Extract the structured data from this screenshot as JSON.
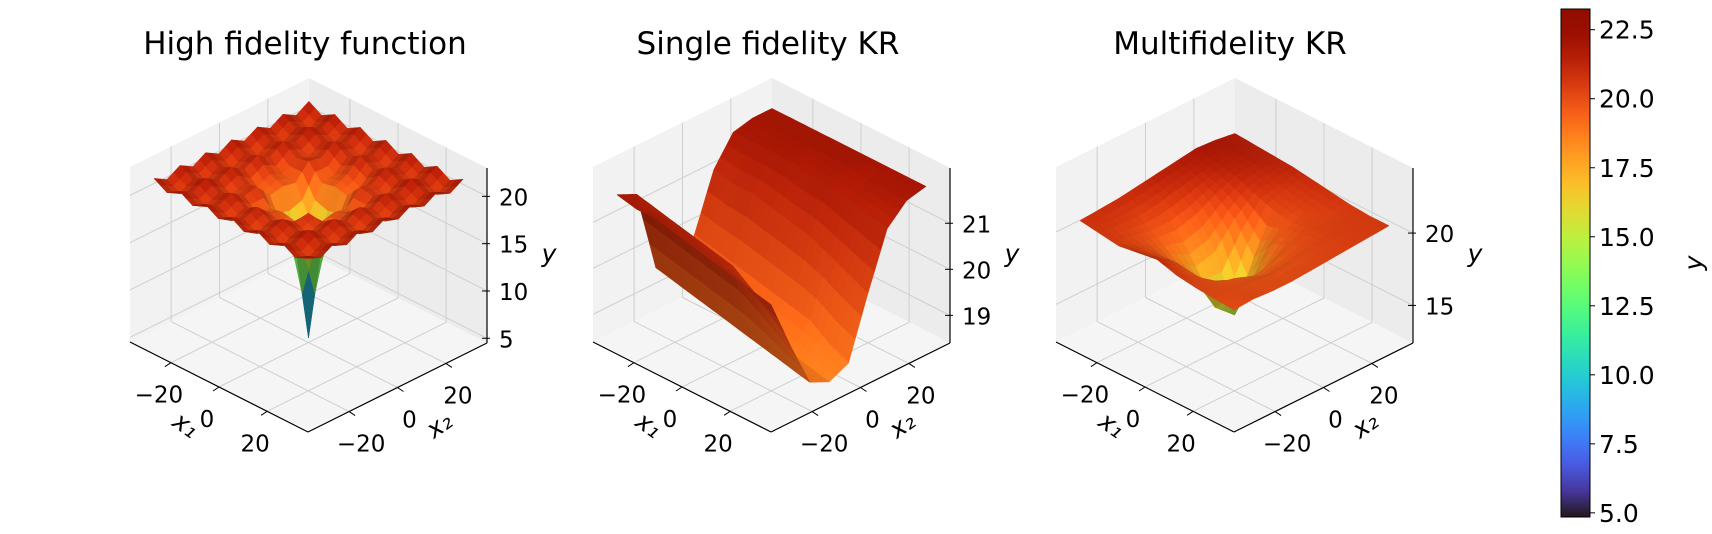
{
  "chart_data": {
    "type": "surface3d",
    "colormap": "turbo",
    "plots": [
      {
        "title": "High fidelity function",
        "xlabel": "x₁",
        "x2label": "x₂",
        "zlabel": "y",
        "x1_ticks": [
          -20,
          0,
          20
        ],
        "x1_tick_labels": [
          "−20",
          "0",
          "20"
        ],
        "x2_ticks": [
          -20,
          0,
          20
        ],
        "x2_tick_labels": [
          "−20",
          "0",
          "20"
        ],
        "z_ticks": [
          5,
          10,
          15,
          20
        ],
        "z_tick_labels": [
          "5",
          "10",
          "15",
          "20"
        ],
        "xlim": [
          -37,
          37
        ],
        "zlim": [
          4.5,
          23.0
        ],
        "x1": [
          -32,
          -26.7,
          -21.3,
          -16,
          -10.7,
          -5.3,
          0,
          5.3,
          10.7,
          16,
          21.3,
          26.7,
          32
        ],
        "x2": [
          -32,
          -26.7,
          -21.3,
          -16,
          -10.7,
          -5.3,
          0,
          5.3,
          10.7,
          16,
          21.3,
          26.7,
          32
        ],
        "z": [
          [
            21.8,
            21,
            21.8,
            21,
            21.8,
            21,
            21.8,
            21,
            21.8,
            21,
            21.8,
            21,
            21.8
          ],
          [
            21,
            20.2,
            21,
            20.2,
            20.9,
            20.1,
            20.9,
            20.1,
            20.9,
            20.2,
            21,
            20.2,
            21
          ],
          [
            21.8,
            21,
            21.8,
            20.9,
            21.6,
            20.7,
            21.5,
            20.7,
            21.6,
            20.9,
            21.8,
            21,
            21.8
          ],
          [
            21,
            20.2,
            20.9,
            20.0,
            20.6,
            19.5,
            20.2,
            19.5,
            20.6,
            20.0,
            20.9,
            20.2,
            21
          ],
          [
            21.8,
            20.9,
            21.6,
            20.6,
            20.9,
            19.3,
            19.6,
            19.3,
            20.9,
            20.6,
            21.6,
            20.9,
            21.8
          ],
          [
            21,
            20.1,
            20.7,
            19.5,
            19.3,
            16.3,
            15.1,
            16.3,
            19.3,
            19.5,
            20.7,
            20.1,
            21
          ],
          [
            21.8,
            20.9,
            21.5,
            20.2,
            19.6,
            15.1,
            5,
            15.1,
            19.6,
            20.2,
            21.5,
            20.9,
            21.8
          ],
          [
            21,
            20.1,
            20.7,
            19.5,
            19.3,
            16.3,
            15.1,
            16.3,
            19.3,
            19.5,
            20.7,
            20.1,
            21
          ],
          [
            21.8,
            20.9,
            21.6,
            20.6,
            20.9,
            19.3,
            19.6,
            19.3,
            20.9,
            20.6,
            21.6,
            20.9,
            21.8
          ],
          [
            21,
            20.2,
            20.9,
            20.0,
            20.6,
            19.5,
            20.2,
            19.5,
            20.6,
            20.0,
            20.9,
            20.2,
            21
          ],
          [
            21.8,
            21,
            21.8,
            20.9,
            21.6,
            20.7,
            21.5,
            20.7,
            21.6,
            20.9,
            21.8,
            21,
            21.8
          ],
          [
            21,
            20.2,
            21,
            20.2,
            20.9,
            20.1,
            20.9,
            20.1,
            20.9,
            20.2,
            21,
            20.2,
            21
          ],
          [
            21.8,
            21,
            21.8,
            21,
            21.8,
            21,
            21.8,
            21,
            21.8,
            21,
            21.8,
            21,
            21.8
          ]
        ]
      },
      {
        "title": "Single fidelity KR",
        "xlabel": "x₁",
        "x2label": "x₂",
        "zlabel": "y",
        "x1_ticks": [
          -20,
          0,
          20
        ],
        "x1_tick_labels": [
          "−20",
          "0",
          "20"
        ],
        "x2_ticks": [
          -20,
          0,
          20
        ],
        "x2_tick_labels": [
          "−20",
          "0",
          "20"
        ],
        "z_ticks": [
          19,
          20,
          21
        ],
        "z_tick_labels": [
          "19",
          "20",
          "21"
        ],
        "xlim": [
          -37,
          37
        ],
        "zlim": [
          18.4,
          22.2
        ],
        "x1": [
          -32,
          -24,
          -16,
          -8,
          0,
          8,
          16,
          24,
          32
        ],
        "x2": [
          -32,
          -24,
          -16,
          -8,
          0,
          8,
          16,
          24,
          32
        ],
        "z": [
          [
            21.6,
            21.4,
            19.6,
            19.3,
            19.9,
            21.1,
            21.7,
            21.8,
            21.8
          ],
          [
            21.5,
            21.3,
            19.5,
            19.2,
            19.8,
            21.0,
            21.7,
            21.8,
            21.8
          ],
          [
            21.5,
            21.2,
            19.4,
            19.1,
            19.7,
            21.0,
            21.7,
            21.8,
            21.8
          ],
          [
            21.4,
            21.1,
            19.3,
            19.0,
            19.6,
            20.9,
            21.7,
            21.8,
            21.8
          ],
          [
            21.3,
            21.0,
            19.2,
            18.9,
            19.5,
            20.8,
            21.6,
            21.8,
            21.8
          ],
          [
            21.2,
            20.9,
            19.1,
            18.9,
            19.4,
            20.7,
            21.6,
            21.8,
            21.8
          ],
          [
            21.1,
            20.6,
            19.0,
            18.8,
            19.3,
            20.5,
            21.5,
            21.7,
            21.8
          ],
          [
            21.0,
            20.2,
            18.9,
            18.7,
            19.0,
            20.3,
            21.4,
            21.7,
            21.8
          ],
          [
            20.9,
            19.8,
            18.8,
            18.6,
            18.8,
            20.1,
            21.3,
            21.7,
            21.8
          ]
        ]
      },
      {
        "title": "Multifidelity KR",
        "xlabel": "x₁",
        "x2label": "x₂",
        "zlabel": "y",
        "x1_ticks": [
          -20,
          0,
          20
        ],
        "x1_tick_labels": [
          "−20",
          "0",
          "20"
        ],
        "x2_ticks": [
          -20,
          0,
          20
        ],
        "x2_tick_labels": [
          "−20",
          "0",
          "20"
        ],
        "z_ticks": [
          15,
          20
        ],
        "z_tick_labels": [
          "15",
          "20"
        ],
        "xlim": [
          -37,
          37
        ],
        "zlim": [
          12.4,
          24.5
        ],
        "x1": [
          -32,
          -24,
          -16,
          -8,
          0,
          8,
          16,
          24,
          32
        ],
        "x2": [
          -32,
          -24,
          -16,
          -8,
          0,
          8,
          16,
          24,
          32
        ],
        "z": [
          [
            20.8,
            20.9,
            21.0,
            21.2,
            21.4,
            21.6,
            21.8,
            21.7,
            21.5
          ],
          [
            20.6,
            20.5,
            20.4,
            20.6,
            20.9,
            21.2,
            21.5,
            21.6,
            21.4
          ],
          [
            20.4,
            20.0,
            19.6,
            19.5,
            19.9,
            20.6,
            21.2,
            21.4,
            21.3
          ],
          [
            20.6,
            19.8,
            18.6,
            17.6,
            18.0,
            19.6,
            20.7,
            21.0,
            21.2
          ],
          [
            20.8,
            19.9,
            18.0,
            15.5,
            14.3,
            17.6,
            20.2,
            20.6,
            21.0
          ],
          [
            20.4,
            19.7,
            18.4,
            17.0,
            17.4,
            19.2,
            20.0,
            20.4,
            20.8
          ],
          [
            20.2,
            19.8,
            19.5,
            19.0,
            19.3,
            19.8,
            20.2,
            20.3,
            20.6
          ],
          [
            20.1,
            20.0,
            19.9,
            19.8,
            19.9,
            20.1,
            20.3,
            20.4,
            20.5
          ],
          [
            20.0,
            20.1,
            20.0,
            20.0,
            20.1,
            20.2,
            20.3,
            20.4,
            20.5
          ]
        ]
      }
    ],
    "colorbar": {
      "label": "y",
      "range": [
        4.85,
        23.25
      ],
      "ticks": [
        5.0,
        7.5,
        10.0,
        12.5,
        15.0,
        17.5,
        20.0,
        22.5
      ],
      "tick_labels": [
        "5.0",
        "7.5",
        "10.0",
        "12.5",
        "15.0",
        "17.5",
        "20.0",
        "22.5"
      ]
    },
    "colors": {
      "pane": "#f2f2f2",
      "grid": "#cfcfcf",
      "axis": "#000000"
    }
  }
}
